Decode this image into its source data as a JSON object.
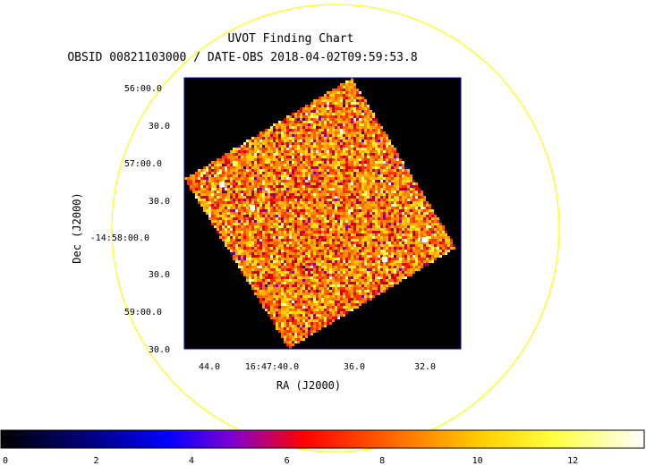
{
  "chart_data": {
    "type": "heatmap",
    "title": "UVOT Finding Chart",
    "subtitle": "OBSID 00821103000 / DATE-OBS 2018-04-02T09:59:53.8",
    "xlabel": "RA (J2000)",
    "ylabel": "Dec (J2000)",
    "x_ticks": [
      "44.0",
      "16:47:40.0",
      "36.0",
      "32.0"
    ],
    "y_ticks": [
      "56:00.0",
      "30.0",
      "57:00.0",
      "30.0",
      "-14:58:00.0",
      "30.0",
      "59:00.0",
      "30.0"
    ],
    "colorbar": {
      "ticks": [
        "0",
        "2",
        "4",
        "6",
        "8",
        "10",
        "12"
      ],
      "range": [
        0,
        13.5
      ],
      "colormap": [
        "#000000",
        "#0000ff",
        "#8000c0",
        "#ff0000",
        "#ff8000",
        "#ffff00",
        "#ffffff"
      ]
    },
    "grid": false,
    "overlay_circle_color": "#ffff00",
    "frame_color": "#0000a0"
  }
}
